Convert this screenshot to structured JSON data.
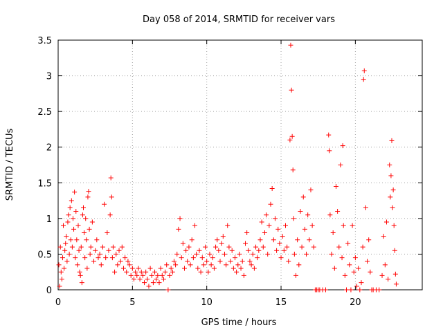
{
  "chart_data": {
    "type": "scatter",
    "title": "Day 058 of 2014, SRMTID for receiver vars",
    "xlabel": "GPS time / hours",
    "ylabel": "SRMTID / TECUs",
    "xlim": [
      0,
      24.5
    ],
    "ylim": [
      0,
      3.5
    ],
    "xticks": [
      0,
      5,
      10,
      15,
      20
    ],
    "xtick_labels": [
      "0",
      "5",
      "10",
      "15",
      "20"
    ],
    "yticks": [
      0,
      0.5,
      1,
      1.5,
      2,
      2.5,
      3,
      3.5
    ],
    "ytick_labels": [
      "0",
      "0.5",
      "1",
      "1.5",
      "2",
      "2.5",
      "3",
      "3.5"
    ],
    "grid": true,
    "marker": "+",
    "color": "#ff0000",
    "series": [
      {
        "name": "SRMTID",
        "points": [
          [
            0.05,
            0.35
          ],
          [
            0.1,
            0.05
          ],
          [
            0.15,
            0.6
          ],
          [
            0.2,
            0.25
          ],
          [
            0.25,
            0.15
          ],
          [
            0.3,
            0.45
          ],
          [
            0.35,
            0.9
          ],
          [
            0.4,
            0.3
          ],
          [
            0.45,
            0.55
          ],
          [
            0.5,
            0.65
          ],
          [
            0.55,
            0.75
          ],
          [
            0.6,
            0.4
          ],
          [
            0.65,
            0.95
          ],
          [
            0.7,
            1.05
          ],
          [
            0.75,
            0.5
          ],
          [
            0.8,
            1.15
          ],
          [
            0.85,
            0.7
          ],
          [
            0.9,
            1.25
          ],
          [
            0.95,
            0.6
          ],
          [
            1.0,
            1.0
          ],
          [
            1.05,
            0.85
          ],
          [
            1.1,
            1.37
          ],
          [
            1.15,
            0.45
          ],
          [
            1.2,
            1.1
          ],
          [
            1.25,
            0.7
          ],
          [
            1.3,
            0.35
          ],
          [
            1.35,
            0.9
          ],
          [
            1.4,
            0.55
          ],
          [
            1.45,
            0.25
          ],
          [
            1.5,
            0.2
          ],
          [
            1.55,
            0.6
          ],
          [
            1.6,
            0.1
          ],
          [
            1.65,
            1.05
          ],
          [
            1.7,
            1.15
          ],
          [
            1.75,
            0.8
          ],
          [
            1.8,
            0.45
          ],
          [
            1.85,
            1.0
          ],
          [
            1.9,
            0.7
          ],
          [
            1.95,
            0.3
          ],
          [
            2.0,
            1.3
          ],
          [
            2.05,
            1.38
          ],
          [
            2.1,
            0.85
          ],
          [
            2.15,
            0.5
          ],
          [
            2.2,
            0.6
          ],
          [
            2.3,
            0.95
          ],
          [
            2.4,
            0.4
          ],
          [
            2.5,
            0.55
          ],
          [
            2.6,
            0.7
          ],
          [
            2.7,
            0.45
          ],
          [
            2.8,
            0.5
          ],
          [
            2.9,
            0.35
          ],
          [
            3.0,
            0.6
          ],
          [
            3.1,
            1.2
          ],
          [
            3.2,
            0.45
          ],
          [
            3.3,
            0.8
          ],
          [
            3.4,
            0.55
          ],
          [
            3.5,
            1.05
          ],
          [
            3.55,
            1.57
          ],
          [
            3.6,
            1.3
          ],
          [
            3.65,
            0.45
          ],
          [
            3.7,
            0.6
          ],
          [
            3.8,
            0.25
          ],
          [
            3.9,
            0.5
          ],
          [
            4.0,
            0.35
          ],
          [
            4.1,
            0.55
          ],
          [
            4.2,
            0.4
          ],
          [
            4.3,
            0.6
          ],
          [
            4.4,
            0.3
          ],
          [
            4.5,
            0.45
          ],
          [
            4.6,
            0.25
          ],
          [
            4.7,
            0.4
          ],
          [
            4.8,
            0.35
          ],
          [
            4.9,
            0.2
          ],
          [
            5.0,
            0.3
          ],
          [
            5.1,
            0.15
          ],
          [
            5.2,
            0.25
          ],
          [
            5.3,
            0.2
          ],
          [
            5.4,
            0.3
          ],
          [
            5.5,
            0.15
          ],
          [
            5.6,
            0.25
          ],
          [
            5.7,
            0.2
          ],
          [
            5.8,
            0.1
          ],
          [
            5.9,
            0.25
          ],
          [
            6.0,
            0.15
          ],
          [
            6.1,
            0.05
          ],
          [
            6.2,
            0.3
          ],
          [
            6.3,
            0.2
          ],
          [
            6.4,
            0.1
          ],
          [
            6.5,
            0.25
          ],
          [
            6.6,
            0.15
          ],
          [
            6.7,
            0.2
          ],
          [
            6.8,
            0.1
          ],
          [
            6.9,
            0.3
          ],
          [
            7.0,
            0.2
          ],
          [
            7.1,
            0.15
          ],
          [
            7.2,
            0.25
          ],
          [
            7.3,
            0.35
          ],
          [
            7.4,
            0.0
          ],
          [
            7.5,
            0.2
          ],
          [
            7.6,
            0.3
          ],
          [
            7.7,
            0.25
          ],
          [
            7.8,
            0.4
          ],
          [
            7.9,
            0.35
          ],
          [
            8.0,
            0.5
          ],
          [
            8.1,
            0.85
          ],
          [
            8.2,
            1.0
          ],
          [
            8.3,
            0.45
          ],
          [
            8.4,
            0.65
          ],
          [
            8.5,
            0.3
          ],
          [
            8.6,
            0.55
          ],
          [
            8.7,
            0.4
          ],
          [
            8.8,
            0.6
          ],
          [
            8.9,
            0.35
          ],
          [
            9.0,
            0.7
          ],
          [
            9.1,
            0.45
          ],
          [
            9.2,
            0.9
          ],
          [
            9.3,
            0.5
          ],
          [
            9.4,
            0.3
          ],
          [
            9.5,
            0.55
          ],
          [
            9.6,
            0.25
          ],
          [
            9.7,
            0.45
          ],
          [
            9.8,
            0.35
          ],
          [
            9.9,
            0.6
          ],
          [
            10.0,
            0.4
          ],
          [
            10.1,
            0.25
          ],
          [
            10.2,
            0.5
          ],
          [
            10.3,
            0.35
          ],
          [
            10.4,
            0.45
          ],
          [
            10.5,
            0.3
          ],
          [
            10.6,
            0.6
          ],
          [
            10.7,
            0.7
          ],
          [
            10.8,
            0.55
          ],
          [
            10.9,
            0.4
          ],
          [
            11.0,
            0.65
          ],
          [
            11.1,
            0.75
          ],
          [
            11.2,
            0.5
          ],
          [
            11.3,
            0.35
          ],
          [
            11.4,
            0.9
          ],
          [
            11.5,
            0.6
          ],
          [
            11.6,
            0.4
          ],
          [
            11.7,
            0.55
          ],
          [
            11.8,
            0.3
          ],
          [
            11.9,
            0.45
          ],
          [
            12.0,
            0.25
          ],
          [
            12.1,
            0.35
          ],
          [
            12.2,
            0.5
          ],
          [
            12.3,
            0.3
          ],
          [
            12.4,
            0.4
          ],
          [
            12.5,
            0.2
          ],
          [
            12.6,
            0.65
          ],
          [
            12.7,
            0.8
          ],
          [
            12.8,
            0.55
          ],
          [
            12.9,
            0.4
          ],
          [
            13.0,
            0.35
          ],
          [
            13.1,
            0.5
          ],
          [
            13.2,
            0.3
          ],
          [
            13.3,
            0.6
          ],
          [
            13.4,
            0.45
          ],
          [
            13.5,
            0.55
          ],
          [
            13.6,
            0.7
          ],
          [
            13.7,
            0.95
          ],
          [
            13.8,
            0.6
          ],
          [
            13.9,
            0.8
          ],
          [
            14.0,
            1.05
          ],
          [
            14.1,
            0.5
          ],
          [
            14.2,
            0.9
          ],
          [
            14.3,
            1.2
          ],
          [
            14.4,
            1.42
          ],
          [
            14.5,
            0.7
          ],
          [
            14.6,
            1.0
          ],
          [
            14.7,
            0.55
          ],
          [
            14.8,
            0.85
          ],
          [
            14.9,
            0.65
          ],
          [
            15.0,
            0.45
          ],
          [
            15.1,
            0.75
          ],
          [
            15.2,
            0.55
          ],
          [
            15.3,
            0.9
          ],
          [
            15.4,
            0.6
          ],
          [
            15.5,
            0.4
          ],
          [
            15.6,
            2.1
          ],
          [
            15.65,
            3.43
          ],
          [
            15.7,
            2.8
          ],
          [
            15.75,
            2.15
          ],
          [
            15.8,
            1.68
          ],
          [
            15.85,
            1.0
          ],
          [
            15.9,
            0.5
          ],
          [
            16.0,
            0.2
          ],
          [
            16.1,
            0.7
          ],
          [
            16.2,
            0.35
          ],
          [
            16.3,
            1.1
          ],
          [
            16.4,
            0.6
          ],
          [
            16.5,
            1.3
          ],
          [
            16.6,
            0.85
          ],
          [
            16.7,
            0.5
          ],
          [
            16.8,
            1.05
          ],
          [
            16.9,
            0.7
          ],
          [
            17.0,
            1.4
          ],
          [
            17.1,
            0.9
          ],
          [
            17.2,
            0.6
          ],
          [
            17.3,
            0.0
          ],
          [
            17.4,
            0.0
          ],
          [
            17.5,
            0.0
          ],
          [
            17.6,
            0.0
          ],
          [
            17.8,
            0.0
          ],
          [
            18.0,
            0.0
          ],
          [
            18.2,
            2.17
          ],
          [
            18.25,
            1.95
          ],
          [
            18.3,
            1.05
          ],
          [
            18.4,
            0.5
          ],
          [
            18.5,
            0.8
          ],
          [
            18.6,
            0.3
          ],
          [
            18.7,
            1.45
          ],
          [
            18.8,
            1.1
          ],
          [
            18.9,
            0.6
          ],
          [
            19.0,
            1.75
          ],
          [
            19.1,
            0.45
          ],
          [
            19.15,
            2.02
          ],
          [
            19.2,
            0.9
          ],
          [
            19.3,
            0.2
          ],
          [
            19.4,
            0.0
          ],
          [
            19.5,
            0.65
          ],
          [
            19.6,
            0.35
          ],
          [
            19.7,
            0.0
          ],
          [
            19.8,
            0.9
          ],
          [
            19.9,
            0.25
          ],
          [
            20.0,
            0.45
          ],
          [
            20.1,
            0.05
          ],
          [
            20.2,
            0.3
          ],
          [
            20.3,
            0.0
          ],
          [
            20.4,
            0.1
          ],
          [
            20.5,
            0.6
          ],
          [
            20.55,
            2.95
          ],
          [
            20.6,
            3.07
          ],
          [
            20.7,
            1.15
          ],
          [
            20.8,
            0.4
          ],
          [
            20.9,
            0.7
          ],
          [
            21.0,
            0.25
          ],
          [
            21.1,
            0.0
          ],
          [
            21.2,
            0.0
          ],
          [
            21.4,
            0.0
          ],
          [
            21.6,
            0.0
          ],
          [
            21.8,
            0.2
          ],
          [
            21.9,
            0.75
          ],
          [
            22.0,
            0.35
          ],
          [
            22.1,
            0.95
          ],
          [
            22.2,
            0.15
          ],
          [
            22.3,
            1.75
          ],
          [
            22.35,
            1.3
          ],
          [
            22.4,
            1.6
          ],
          [
            22.45,
            2.09
          ],
          [
            22.5,
            1.15
          ],
          [
            22.55,
            1.4
          ],
          [
            22.6,
            0.9
          ],
          [
            22.65,
            0.55
          ],
          [
            22.7,
            0.22
          ],
          [
            22.75,
            0.08
          ]
        ]
      }
    ]
  }
}
